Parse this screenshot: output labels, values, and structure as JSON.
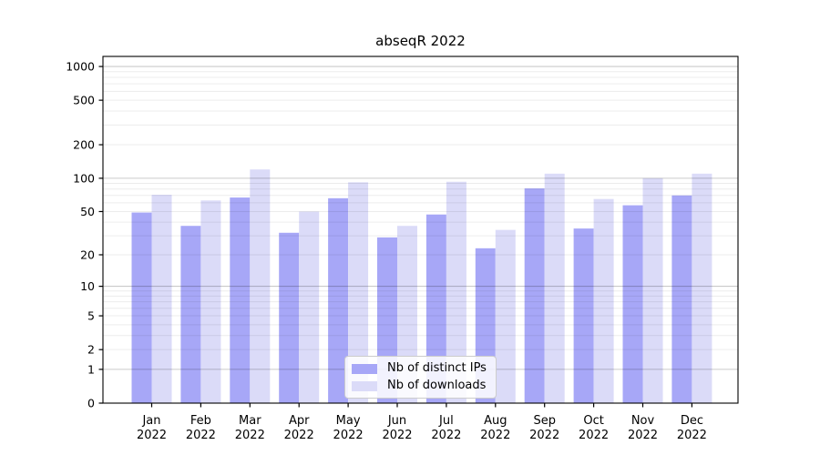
{
  "title": "abseqR 2022",
  "chart_data": {
    "type": "bar",
    "title": "abseqR 2022",
    "scale": "log1p",
    "ylim": [
      0,
      1230
    ],
    "yticks": [
      0,
      1,
      2,
      5,
      10,
      20,
      50,
      100,
      200,
      500,
      1000
    ],
    "grid": "major-and-minor-horizontal",
    "legend_position": "lower-center",
    "xlabel": "",
    "ylabel": "",
    "categories": [
      "Jan",
      "Feb",
      "Mar",
      "Apr",
      "May",
      "Jun",
      "Jul",
      "Aug",
      "Sep",
      "Oct",
      "Nov",
      "Dec"
    ],
    "category_year": "2022",
    "series": [
      {
        "name": "Nb of distinct IPs",
        "color": "#a7a7f7",
        "values": [
          49,
          37,
          67,
          32,
          66,
          29,
          47,
          23,
          81,
          35,
          57,
          70
        ]
      },
      {
        "name": "Nb of downloads",
        "color": "#dbdbf8",
        "values": [
          71,
          63,
          120,
          50,
          92,
          37,
          93,
          34,
          110,
          65,
          100,
          110
        ]
      }
    ]
  }
}
